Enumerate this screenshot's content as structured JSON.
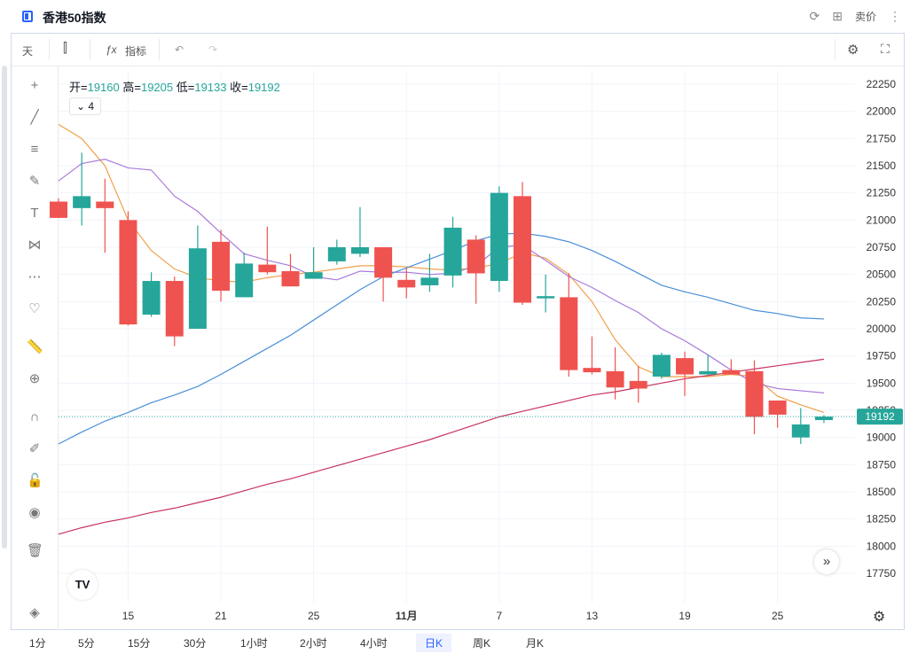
{
  "header": {
    "title": "香港50指数",
    "price_label": "卖价"
  },
  "toolbar": {
    "interval": "天",
    "indicators": "指标"
  },
  "ohlc": {
    "open_label": "开=",
    "open": "19160",
    "high_label": "高=",
    "high": "19205",
    "low_label": "低=",
    "low": "19133",
    "close_label": "收=",
    "close": "19192"
  },
  "legend_toggle": {
    "label": "4"
  },
  "periods": [
    "1分",
    "5分",
    "15分",
    "30分",
    "1小时",
    "2小时",
    "4小时",
    "日K",
    "周K",
    "月K"
  ],
  "active_period": "日K",
  "colors": {
    "up": "#26a69a",
    "down": "#ef5350",
    "ma_orange": "#f0a049",
    "ma_purple": "#a87ad9",
    "ma_blue": "#4a8fd8",
    "ma_red": "#c8335f"
  },
  "chart_data": {
    "type": "candlestick",
    "ylim": [
      17750,
      22250
    ],
    "yticks": [
      17750,
      18000,
      18250,
      18500,
      18750,
      19000,
      19250,
      19500,
      19750,
      20000,
      20250,
      20500,
      20750,
      21000,
      21250,
      21500,
      21750,
      22000,
      22250
    ],
    "xtick_labels": [
      {
        "index": 3,
        "label": "15"
      },
      {
        "index": 7,
        "label": "21"
      },
      {
        "index": 11,
        "label": "25"
      },
      {
        "index": 15,
        "label": "11月"
      },
      {
        "index": 19,
        "label": "7"
      },
      {
        "index": 23,
        "label": "13"
      },
      {
        "index": 27,
        "label": "19"
      },
      {
        "index": 31,
        "label": "25"
      }
    ],
    "last_price": 19192,
    "candles": [
      {
        "o": 21170,
        "h": 21200,
        "l": 21020,
        "c": 21020
      },
      {
        "o": 21110,
        "h": 21620,
        "l": 20950,
        "c": 21220
      },
      {
        "o": 21170,
        "h": 21380,
        "l": 20700,
        "c": 21110
      },
      {
        "o": 21000,
        "h": 21080,
        "l": 20030,
        "c": 20040
      },
      {
        "o": 20130,
        "h": 20520,
        "l": 20110,
        "c": 20440
      },
      {
        "o": 20440,
        "h": 20480,
        "l": 19840,
        "c": 19930
      },
      {
        "o": 20000,
        "h": 20950,
        "l": 20000,
        "c": 20740
      },
      {
        "o": 20800,
        "h": 20910,
        "l": 20250,
        "c": 20350
      },
      {
        "o": 20290,
        "h": 20700,
        "l": 20290,
        "c": 20600
      },
      {
        "o": 20590,
        "h": 20940,
        "l": 20500,
        "c": 20520
      },
      {
        "o": 20530,
        "h": 20690,
        "l": 20390,
        "c": 20390
      },
      {
        "o": 20460,
        "h": 20750,
        "l": 20460,
        "c": 20520
      },
      {
        "o": 20620,
        "h": 20820,
        "l": 20590,
        "c": 20750
      },
      {
        "o": 20690,
        "h": 21120,
        "l": 20660,
        "c": 20750
      },
      {
        "o": 20750,
        "h": 20750,
        "l": 20250,
        "c": 20470
      },
      {
        "o": 20450,
        "h": 20560,
        "l": 20280,
        "c": 20380
      },
      {
        "o": 20400,
        "h": 20690,
        "l": 20340,
        "c": 20470
      },
      {
        "o": 20490,
        "h": 21030,
        "l": 20380,
        "c": 20930
      },
      {
        "o": 20820,
        "h": 20860,
        "l": 20230,
        "c": 20510
      },
      {
        "o": 20440,
        "h": 21310,
        "l": 20340,
        "c": 21250
      },
      {
        "o": 21220,
        "h": 21350,
        "l": 20220,
        "c": 20240
      },
      {
        "o": 20280,
        "h": 20500,
        "l": 20150,
        "c": 20300
      },
      {
        "o": 20290,
        "h": 20510,
        "l": 19560,
        "c": 19620
      },
      {
        "o": 19640,
        "h": 19930,
        "l": 19580,
        "c": 19600
      },
      {
        "o": 19610,
        "h": 19830,
        "l": 19350,
        "c": 19460
      },
      {
        "o": 19520,
        "h": 19660,
        "l": 19320,
        "c": 19450
      },
      {
        "o": 19560,
        "h": 19780,
        "l": 19540,
        "c": 19760
      },
      {
        "o": 19730,
        "h": 19790,
        "l": 19380,
        "c": 19580
      },
      {
        "o": 19580,
        "h": 19760,
        "l": 19570,
        "c": 19610
      },
      {
        "o": 19620,
        "h": 19720,
        "l": 19580,
        "c": 19580
      },
      {
        "o": 19610,
        "h": 19710,
        "l": 19030,
        "c": 19190
      },
      {
        "o": 19340,
        "h": 19340,
        "l": 19090,
        "c": 19210
      },
      {
        "o": 19000,
        "h": 19270,
        "l": 18940,
        "c": 19120
      },
      {
        "o": 19160,
        "h": 19205,
        "l": 19133,
        "c": 19192
      }
    ],
    "series": [
      {
        "color": "#f0a049",
        "values": [
          21880,
          21750,
          21500,
          21000,
          20720,
          20550,
          20470,
          20440,
          20430,
          20470,
          20500,
          20520,
          20550,
          20580,
          20580,
          20570,
          20550,
          20540,
          20560,
          20600,
          20700,
          20650,
          20500,
          20250,
          19900,
          19650,
          19560,
          19560,
          19560,
          19580,
          19560,
          19380,
          19300,
          19230
        ]
      },
      {
        "color": "#a87ad9",
        "values": [
          21360,
          21520,
          21560,
          21480,
          21460,
          21220,
          21080,
          20880,
          20690,
          20630,
          20580,
          20480,
          20450,
          20530,
          20520,
          20520,
          20500,
          20510,
          20580,
          20750,
          20770,
          20630,
          20480,
          20380,
          20260,
          20150,
          20000,
          19890,
          19760,
          19620,
          19500,
          19450,
          19430,
          19410
        ]
      },
      {
        "color": "#4a8fd8",
        "values": [
          18940,
          19050,
          19150,
          19230,
          19320,
          19390,
          19470,
          19580,
          19700,
          19820,
          19940,
          20080,
          20220,
          20360,
          20480,
          20560,
          20640,
          20720,
          20810,
          20870,
          20880,
          20850,
          20800,
          20720,
          20620,
          20510,
          20400,
          20340,
          20290,
          20230,
          20170,
          20140,
          20100,
          20090
        ]
      },
      {
        "color": "#c8335f",
        "values": [
          18110,
          18170,
          18220,
          18260,
          18310,
          18350,
          18400,
          18450,
          18510,
          18570,
          18620,
          18680,
          18740,
          18800,
          18860,
          18920,
          18980,
          19050,
          19120,
          19190,
          19240,
          19290,
          19340,
          19390,
          19420,
          19460,
          19500,
          19540,
          19570,
          19600,
          19630,
          19660,
          19690,
          19720
        ]
      }
    ]
  }
}
